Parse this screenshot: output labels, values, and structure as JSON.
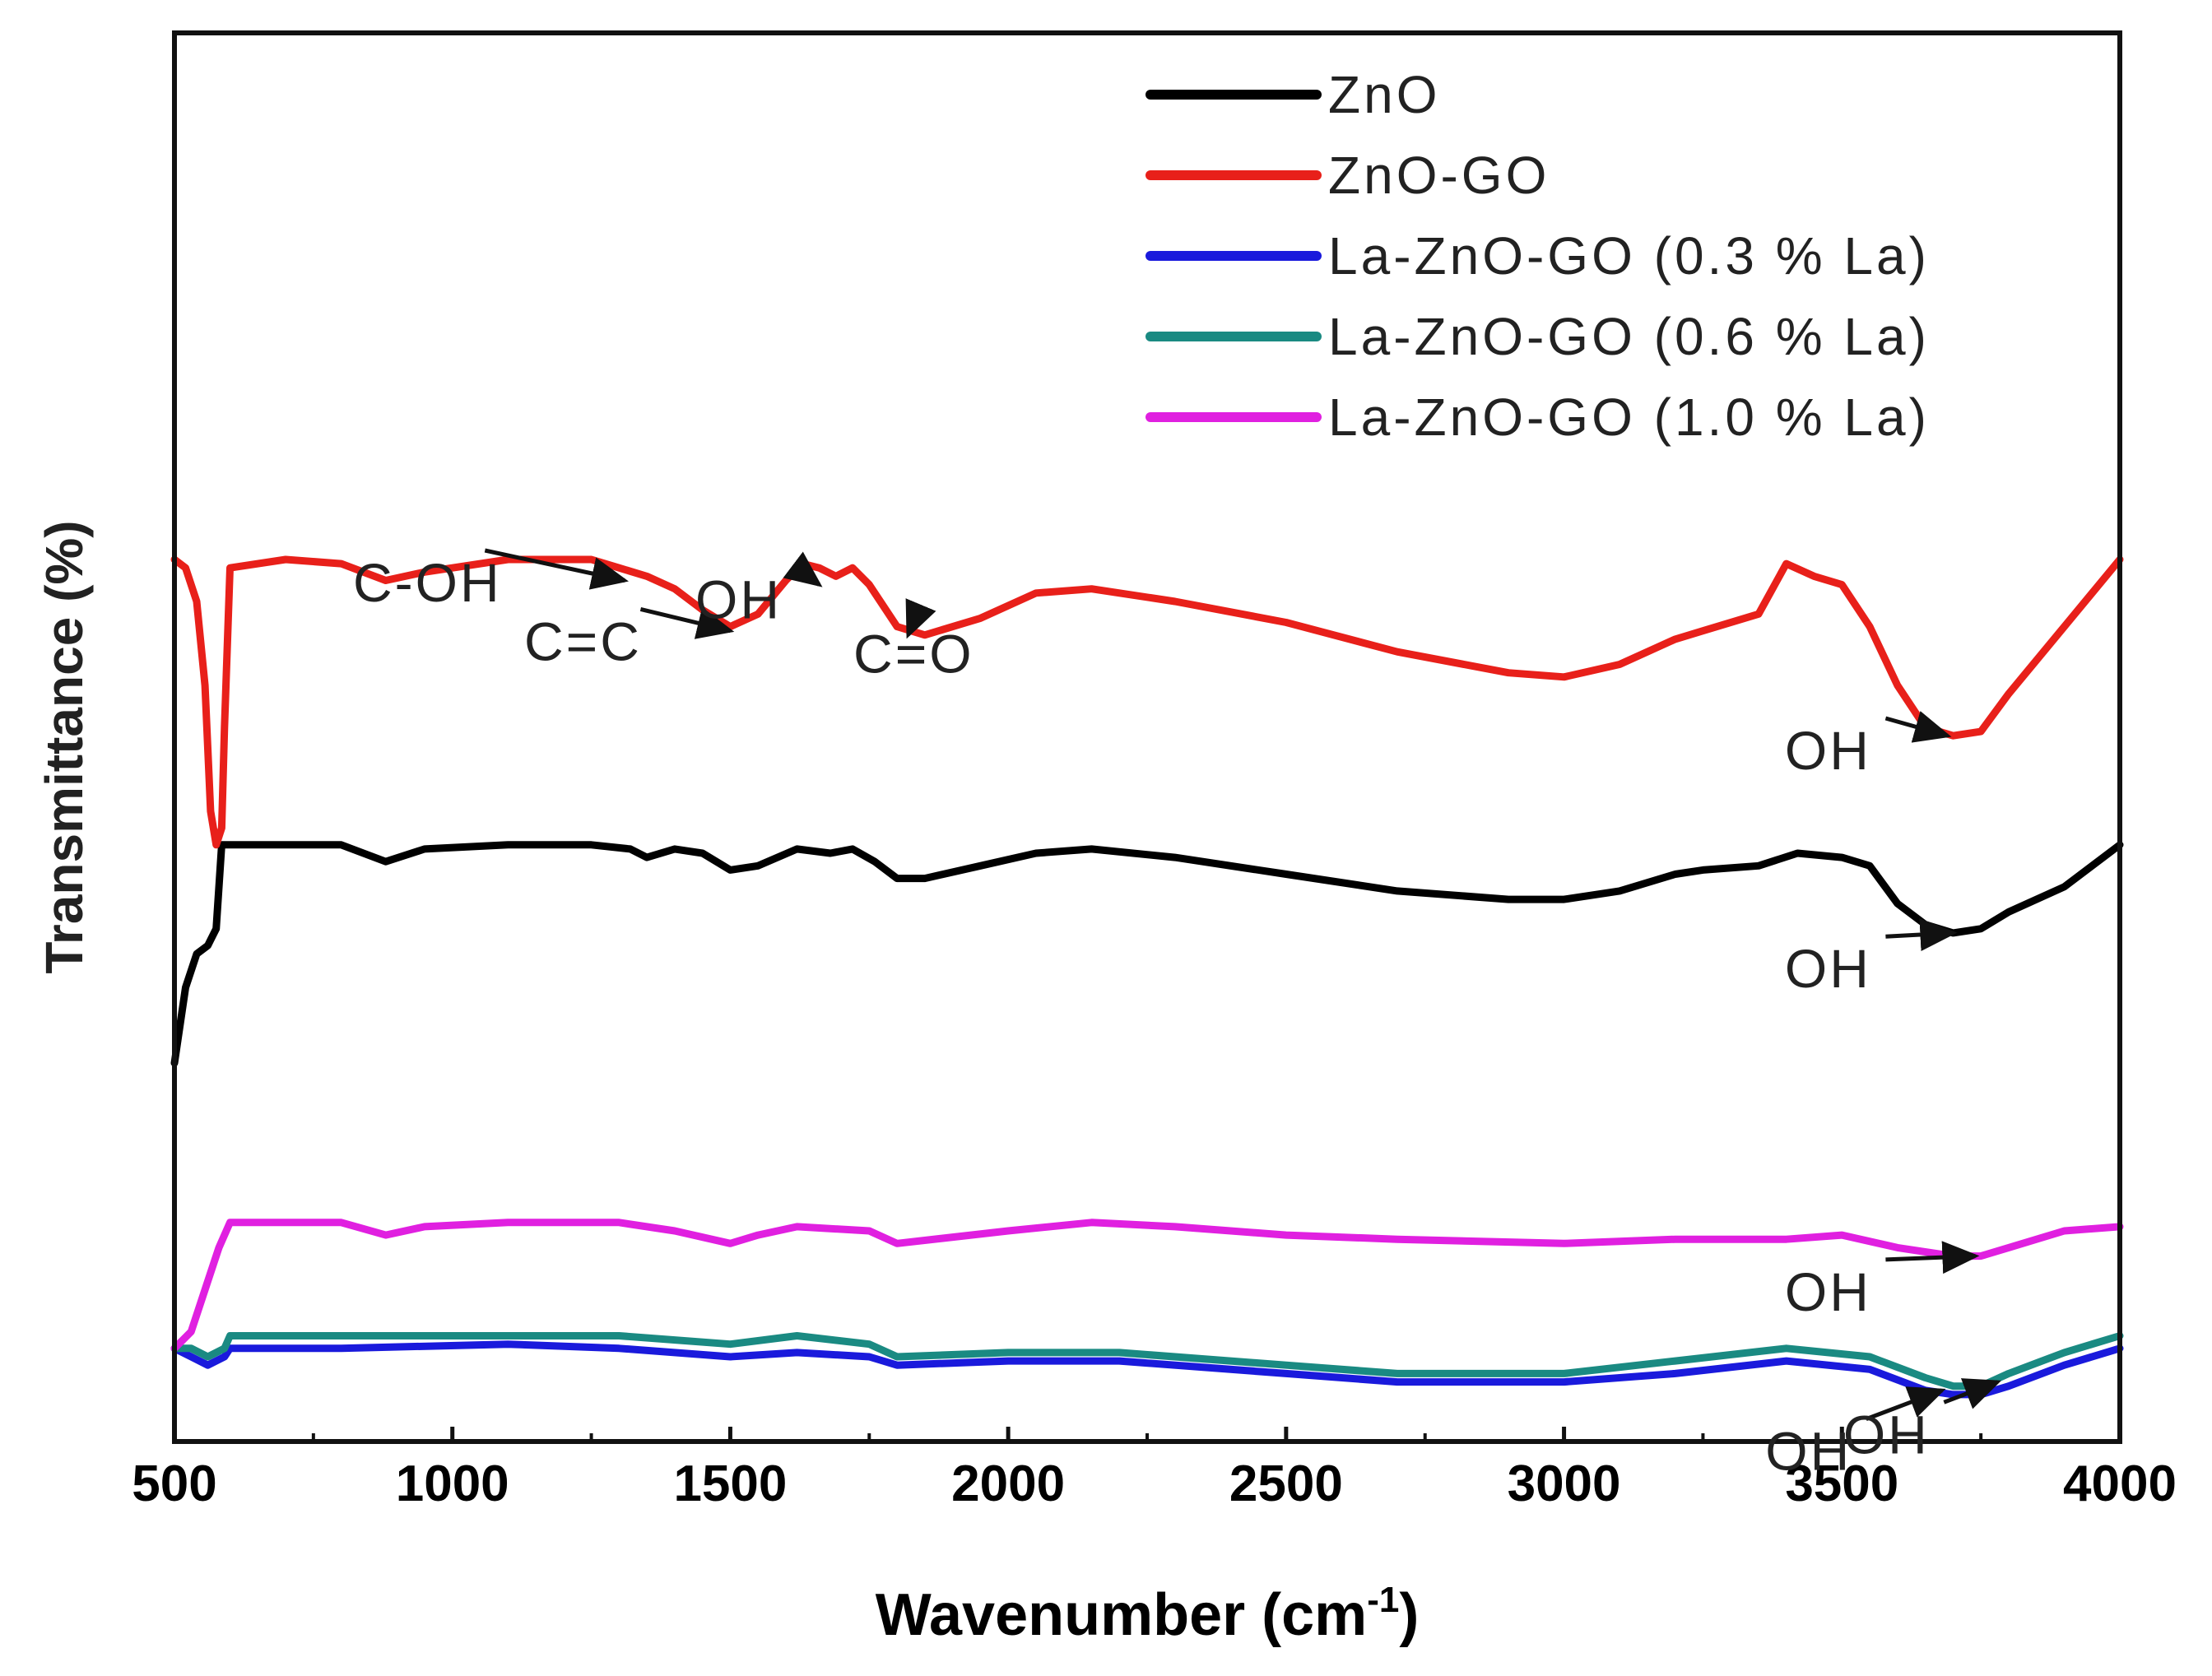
{
  "chart_data": {
    "type": "line",
    "title": "",
    "xlabel": "Wavenumber (cm",
    "xlabel_sup": "-1",
    "xlabel_end": ")",
    "ylabel": "Transmittance (%)",
    "xlim": [
      500,
      4000
    ],
    "ylim": [
      0,
      100
    ],
    "xticks": [
      "500",
      "1000",
      "1500",
      "2000",
      "2500",
      "3000",
      "3500",
      "4000"
    ],
    "grid": false,
    "legend_position": "top-right",
    "series": [
      {
        "name": "ZnO",
        "color": "#000000",
        "points": [
          [
            500,
            40
          ],
          [
            520,
            49
          ],
          [
            540,
            53
          ],
          [
            560,
            54
          ],
          [
            575,
            56
          ],
          [
            585,
            66
          ],
          [
            600,
            66
          ],
          [
            700,
            66
          ],
          [
            800,
            66
          ],
          [
            880,
            64
          ],
          [
            950,
            65.5
          ],
          [
            1100,
            66
          ],
          [
            1250,
            66
          ],
          [
            1320,
            65.5
          ],
          [
            1350,
            64.5
          ],
          [
            1400,
            65.5
          ],
          [
            1450,
            65
          ],
          [
            1500,
            63
          ],
          [
            1550,
            63.5
          ],
          [
            1620,
            65.5
          ],
          [
            1680,
            65
          ],
          [
            1720,
            65.5
          ],
          [
            1760,
            64
          ],
          [
            1800,
            62
          ],
          [
            1850,
            62
          ],
          [
            1950,
            63.5
          ],
          [
            2050,
            65
          ],
          [
            2150,
            65.5
          ],
          [
            2300,
            64.5
          ],
          [
            2500,
            62.5
          ],
          [
            2700,
            60.5
          ],
          [
            2900,
            59.5
          ],
          [
            3000,
            59.5
          ],
          [
            3100,
            60.5
          ],
          [
            3200,
            62.5
          ],
          [
            3250,
            63
          ],
          [
            3350,
            63.5
          ],
          [
            3420,
            65
          ],
          [
            3500,
            64.5
          ],
          [
            3550,
            63.5
          ],
          [
            3600,
            59
          ],
          [
            3650,
            56.5
          ],
          [
            3700,
            55.5
          ],
          [
            3750,
            56
          ],
          [
            3800,
            58
          ],
          [
            3900,
            61
          ],
          [
            4000,
            66
          ]
        ]
      },
      {
        "name": "ZnO-GO",
        "color": "#e8201a",
        "points": [
          [
            500,
            100
          ],
          [
            520,
            99
          ],
          [
            540,
            95
          ],
          [
            555,
            85
          ],
          [
            565,
            70
          ],
          [
            575,
            66
          ],
          [
            585,
            68
          ],
          [
            590,
            80
          ],
          [
            600,
            99
          ],
          [
            700,
            100
          ],
          [
            800,
            99.5
          ],
          [
            880,
            97.5
          ],
          [
            950,
            98.5
          ],
          [
            1100,
            100
          ],
          [
            1250,
            100
          ],
          [
            1300,
            99
          ],
          [
            1350,
            98
          ],
          [
            1400,
            96.5
          ],
          [
            1450,
            94
          ],
          [
            1500,
            92
          ],
          [
            1550,
            93.5
          ],
          [
            1600,
            97.5
          ],
          [
            1630,
            99.5
          ],
          [
            1660,
            99
          ],
          [
            1690,
            98
          ],
          [
            1720,
            99
          ],
          [
            1750,
            97
          ],
          [
            1800,
            92
          ],
          [
            1850,
            91
          ],
          [
            1950,
            93
          ],
          [
            2050,
            96
          ],
          [
            2150,
            96.5
          ],
          [
            2300,
            95
          ],
          [
            2500,
            92.5
          ],
          [
            2700,
            89
          ],
          [
            2900,
            86.5
          ],
          [
            3000,
            86
          ],
          [
            3100,
            87.5
          ],
          [
            3200,
            90.5
          ],
          [
            3250,
            91.5
          ],
          [
            3350,
            93.5
          ],
          [
            3400,
            99.5
          ],
          [
            3450,
            98
          ],
          [
            3500,
            97
          ],
          [
            3550,
            92
          ],
          [
            3600,
            85
          ],
          [
            3650,
            80
          ],
          [
            3700,
            79
          ],
          [
            3750,
            79.5
          ],
          [
            3800,
            84
          ],
          [
            3900,
            92
          ],
          [
            4000,
            100
          ]
        ]
      },
      {
        "name": "La-ZnO-GO (0.3 % La)",
        "color": "#1a1adc",
        "points": [
          [
            500,
            6
          ],
          [
            530,
            5
          ],
          [
            560,
            4
          ],
          [
            590,
            5
          ],
          [
            600,
            6
          ],
          [
            800,
            6
          ],
          [
            1100,
            6.5
          ],
          [
            1300,
            6
          ],
          [
            1500,
            5
          ],
          [
            1620,
            5.5
          ],
          [
            1750,
            5
          ],
          [
            1800,
            4
          ],
          [
            2000,
            4.5
          ],
          [
            2200,
            4.5
          ],
          [
            2500,
            3
          ],
          [
            2700,
            2
          ],
          [
            3000,
            2
          ],
          [
            3200,
            3
          ],
          [
            3400,
            4.5
          ],
          [
            3550,
            3.5
          ],
          [
            3650,
            1
          ],
          [
            3700,
            0.5
          ],
          [
            3750,
            0.5
          ],
          [
            3800,
            1.5
          ],
          [
            3900,
            4
          ],
          [
            4000,
            6
          ]
        ]
      },
      {
        "name": "La-ZnO-GO (0.6 % La)",
        "color": "#1a8a82",
        "points": [
          [
            500,
            6
          ],
          [
            530,
            6
          ],
          [
            560,
            5
          ],
          [
            590,
            6
          ],
          [
            600,
            7.5
          ],
          [
            800,
            7.5
          ],
          [
            1100,
            7.5
          ],
          [
            1300,
            7.5
          ],
          [
            1500,
            6.5
          ],
          [
            1620,
            7.5
          ],
          [
            1750,
            6.5
          ],
          [
            1800,
            5
          ],
          [
            2000,
            5.5
          ],
          [
            2200,
            5.5
          ],
          [
            2500,
            4
          ],
          [
            2700,
            3
          ],
          [
            3000,
            3
          ],
          [
            3200,
            4.5
          ],
          [
            3400,
            6
          ],
          [
            3550,
            5
          ],
          [
            3650,
            2.5
          ],
          [
            3700,
            1.5
          ],
          [
            3750,
            1.5
          ],
          [
            3800,
            3
          ],
          [
            3900,
            5.5
          ],
          [
            4000,
            7.5
          ]
        ]
      },
      {
        "name": "La-ZnO-GO (1.0 % La)",
        "color": "#e020e0",
        "points": [
          [
            500,
            6
          ],
          [
            530,
            8
          ],
          [
            560,
            14
          ],
          [
            580,
            18
          ],
          [
            600,
            21
          ],
          [
            700,
            21
          ],
          [
            800,
            21
          ],
          [
            880,
            19.5
          ],
          [
            950,
            20.5
          ],
          [
            1100,
            21
          ],
          [
            1300,
            21
          ],
          [
            1400,
            20
          ],
          [
            1500,
            18.5
          ],
          [
            1550,
            19.5
          ],
          [
            1620,
            20.5
          ],
          [
            1750,
            20
          ],
          [
            1800,
            18.5
          ],
          [
            2000,
            20
          ],
          [
            2150,
            21
          ],
          [
            2300,
            20.5
          ],
          [
            2500,
            19.5
          ],
          [
            2700,
            19
          ],
          [
            3000,
            18.5
          ],
          [
            3200,
            19
          ],
          [
            3400,
            19
          ],
          [
            3500,
            19.5
          ],
          [
            3600,
            18
          ],
          [
            3700,
            17
          ],
          [
            3750,
            17
          ],
          [
            3800,
            18
          ],
          [
            3900,
            20
          ],
          [
            4000,
            20.5
          ]
        ]
      }
    ],
    "annotations": [
      {
        "text": "C-OH",
        "ax": 0.13,
        "ay": -2.5,
        "arrow_x": 1310,
        "arrow_y": 97.5
      },
      {
        "text": "C=C",
        "ax": 0.21,
        "ay": -3.5,
        "arrow_x": 1500,
        "arrow_y": 91.5
      },
      {
        "text": "OH",
        "ax": 0.29,
        "ay": -4,
        "arrow_x": 1660,
        "arrow_y": 97
      },
      {
        "text": "C=O",
        "ax": 0.38,
        "ay": -4.5,
        "arrow_x": 1820,
        "arrow_y": 91
      },
      {
        "text": "OH",
        "ax": 0.85,
        "ay": -4,
        "arrow_x": 3690,
        "arrow_y": 79
      },
      {
        "text": "OH",
        "ax": 0.85,
        "ay": -6.5,
        "arrow_x": 3700,
        "arrow_y": 55.5
      },
      {
        "text": "OH",
        "ax": 0.85,
        "ay": -6.5,
        "arrow_x": 3740,
        "arrow_y": 17
      },
      {
        "text": "OH",
        "ax": 0.84,
        "ay": -9.5,
        "arrow_x": 3680,
        "arrow_y": 1
      },
      {
        "text": "OH",
        "ax": 0.88,
        "ay": -8.5,
        "arrow_x": 3780,
        "arrow_y": 2
      }
    ]
  }
}
